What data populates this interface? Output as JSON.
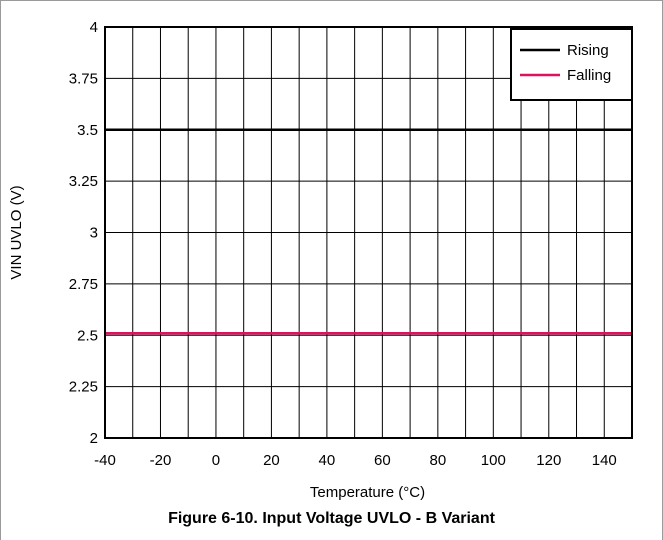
{
  "caption": "Figure 6-10. Input Voltage UVLO - B Variant",
  "chart_data": {
    "type": "line",
    "title": "",
    "xlabel": "Temperature (°C)",
    "ylabel": "VIN UVLO (V)",
    "xlim": [
      -40,
      150
    ],
    "ylim": [
      2,
      4
    ],
    "x_ticks": [
      -40,
      -20,
      0,
      20,
      40,
      60,
      80,
      100,
      120,
      140
    ],
    "y_ticks": [
      2,
      2.25,
      2.5,
      2.75,
      3,
      3.25,
      3.5,
      3.75,
      4
    ],
    "x_tick_labels": [
      "-40",
      "-20",
      "0",
      "20",
      "40",
      "60",
      "80",
      "100",
      "120",
      "140"
    ],
    "y_tick_labels": [
      "2",
      "2.25",
      "2.5",
      "2.75",
      "3",
      "3.25",
      "3.5",
      "3.75",
      "4"
    ],
    "grid": true,
    "legend_position": "top-right",
    "series": [
      {
        "name": "Rising",
        "color": "#000000",
        "x": [
          -40,
          150
        ],
        "y": [
          3.5,
          3.5
        ]
      },
      {
        "name": "Falling",
        "color": "#e0115f",
        "x": [
          -40,
          150
        ],
        "y": [
          2.51,
          2.51
        ]
      }
    ]
  }
}
